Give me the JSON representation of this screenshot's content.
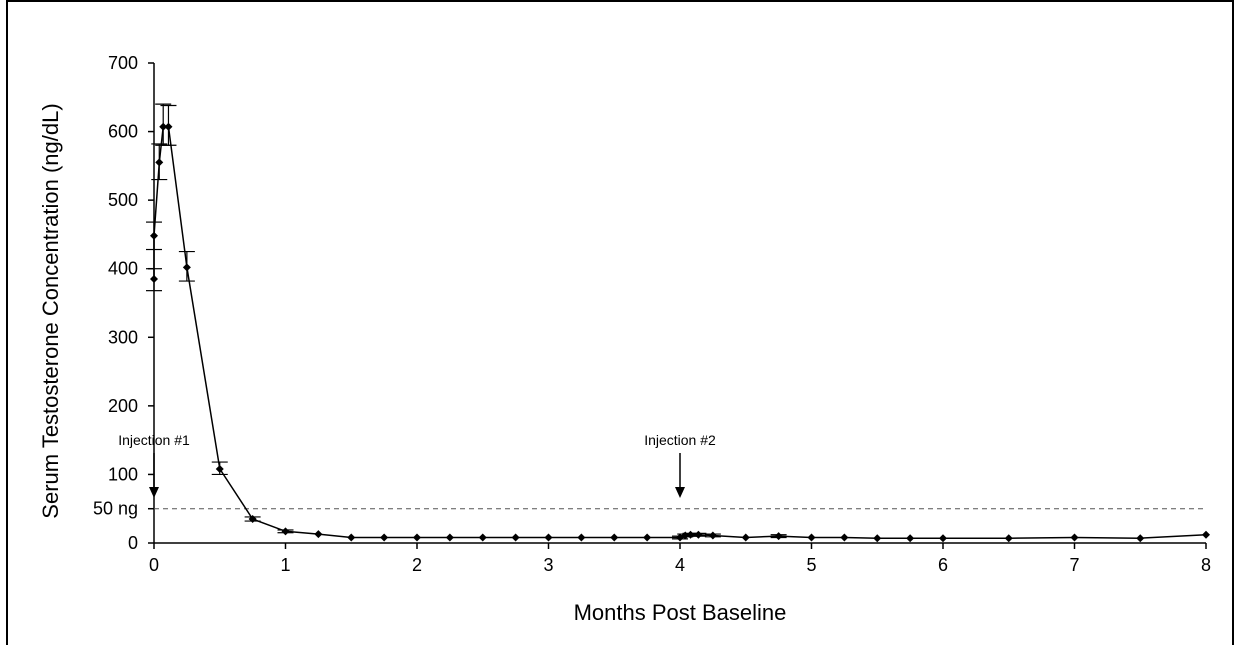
{
  "chart_data": {
    "type": "line",
    "xlabel": "Months Post Baseline",
    "ylabel": "Serum Testosterone Concentration (ng/dL)",
    "xlim": [
      0,
      8
    ],
    "ylim": [
      0,
      700
    ],
    "x_ticks": [
      0,
      1,
      2,
      3,
      4,
      5,
      6,
      7,
      8
    ],
    "x_tick_labels": [
      "0",
      "1",
      "2",
      "3",
      "4",
      "5",
      "6",
      "7",
      "8"
    ],
    "y_ticks": [
      0,
      100,
      200,
      300,
      400,
      500,
      600,
      700
    ],
    "y_tick_labels": [
      "0",
      "100",
      "200",
      "300",
      "400",
      "500",
      "600",
      "700"
    ],
    "grid": false,
    "series": [
      {
        "color": "#000000",
        "marker": "diamond",
        "points": [
          {
            "x": 0.0,
            "y": 385,
            "err_lo": 368,
            "err_hi": 400
          },
          {
            "x": 0.0,
            "y": 448,
            "err_lo": 428,
            "err_hi": 468
          },
          {
            "x": 0.04,
            "y": 555,
            "err_lo": 530,
            "err_hi": 582
          },
          {
            "x": 0.07,
            "y": 607,
            "err_lo": 580,
            "err_hi": 640
          },
          {
            "x": 0.11,
            "y": 607,
            "err_lo": 580,
            "err_hi": 638
          },
          {
            "x": 0.25,
            "y": 402,
            "err_lo": 382,
            "err_hi": 425
          },
          {
            "x": 0.5,
            "y": 108,
            "err_lo": 100,
            "err_hi": 118
          },
          {
            "x": 0.75,
            "y": 35,
            "err_lo": 32,
            "err_hi": 38
          },
          {
            "x": 1.0,
            "y": 17,
            "err_lo": 15,
            "err_hi": 19
          },
          {
            "x": 1.25,
            "y": 13
          },
          {
            "x": 1.5,
            "y": 8
          },
          {
            "x": 1.75,
            "y": 8
          },
          {
            "x": 2.0,
            "y": 8
          },
          {
            "x": 2.25,
            "y": 8
          },
          {
            "x": 2.5,
            "y": 8
          },
          {
            "x": 2.75,
            "y": 8
          },
          {
            "x": 3.0,
            "y": 8
          },
          {
            "x": 3.25,
            "y": 8
          },
          {
            "x": 3.5,
            "y": 8
          },
          {
            "x": 3.75,
            "y": 8
          },
          {
            "x": 4.0,
            "y": 8,
            "err_lo": 6,
            "err_hi": 10
          },
          {
            "x": 4.04,
            "y": 11,
            "err_lo": 9,
            "err_hi": 13
          },
          {
            "x": 4.08,
            "y": 12,
            "err_lo": 10,
            "err_hi": 14
          },
          {
            "x": 4.14,
            "y": 12,
            "err_lo": 10,
            "err_hi": 14
          },
          {
            "x": 4.25,
            "y": 11,
            "err_lo": 9,
            "err_hi": 13
          },
          {
            "x": 4.5,
            "y": 8
          },
          {
            "x": 4.75,
            "y": 10,
            "err_lo": 8,
            "err_hi": 12
          },
          {
            "x": 5.0,
            "y": 8
          },
          {
            "x": 5.25,
            "y": 8
          },
          {
            "x": 5.5,
            "y": 7
          },
          {
            "x": 5.75,
            "y": 7
          },
          {
            "x": 6.0,
            "y": 7
          },
          {
            "x": 6.5,
            "y": 7
          },
          {
            "x": 7.0,
            "y": 8
          },
          {
            "x": 7.5,
            "y": 7
          },
          {
            "x": 8.0,
            "y": 12
          }
        ]
      }
    ],
    "reference_line": {
      "y": 50,
      "label": "50 ng",
      "style": "dashed"
    },
    "annotations": [
      {
        "text": "Injection #1",
        "x": 0,
        "arrow": "down"
      },
      {
        "text": "Injection #2",
        "x": 4,
        "arrow": "down"
      }
    ]
  }
}
